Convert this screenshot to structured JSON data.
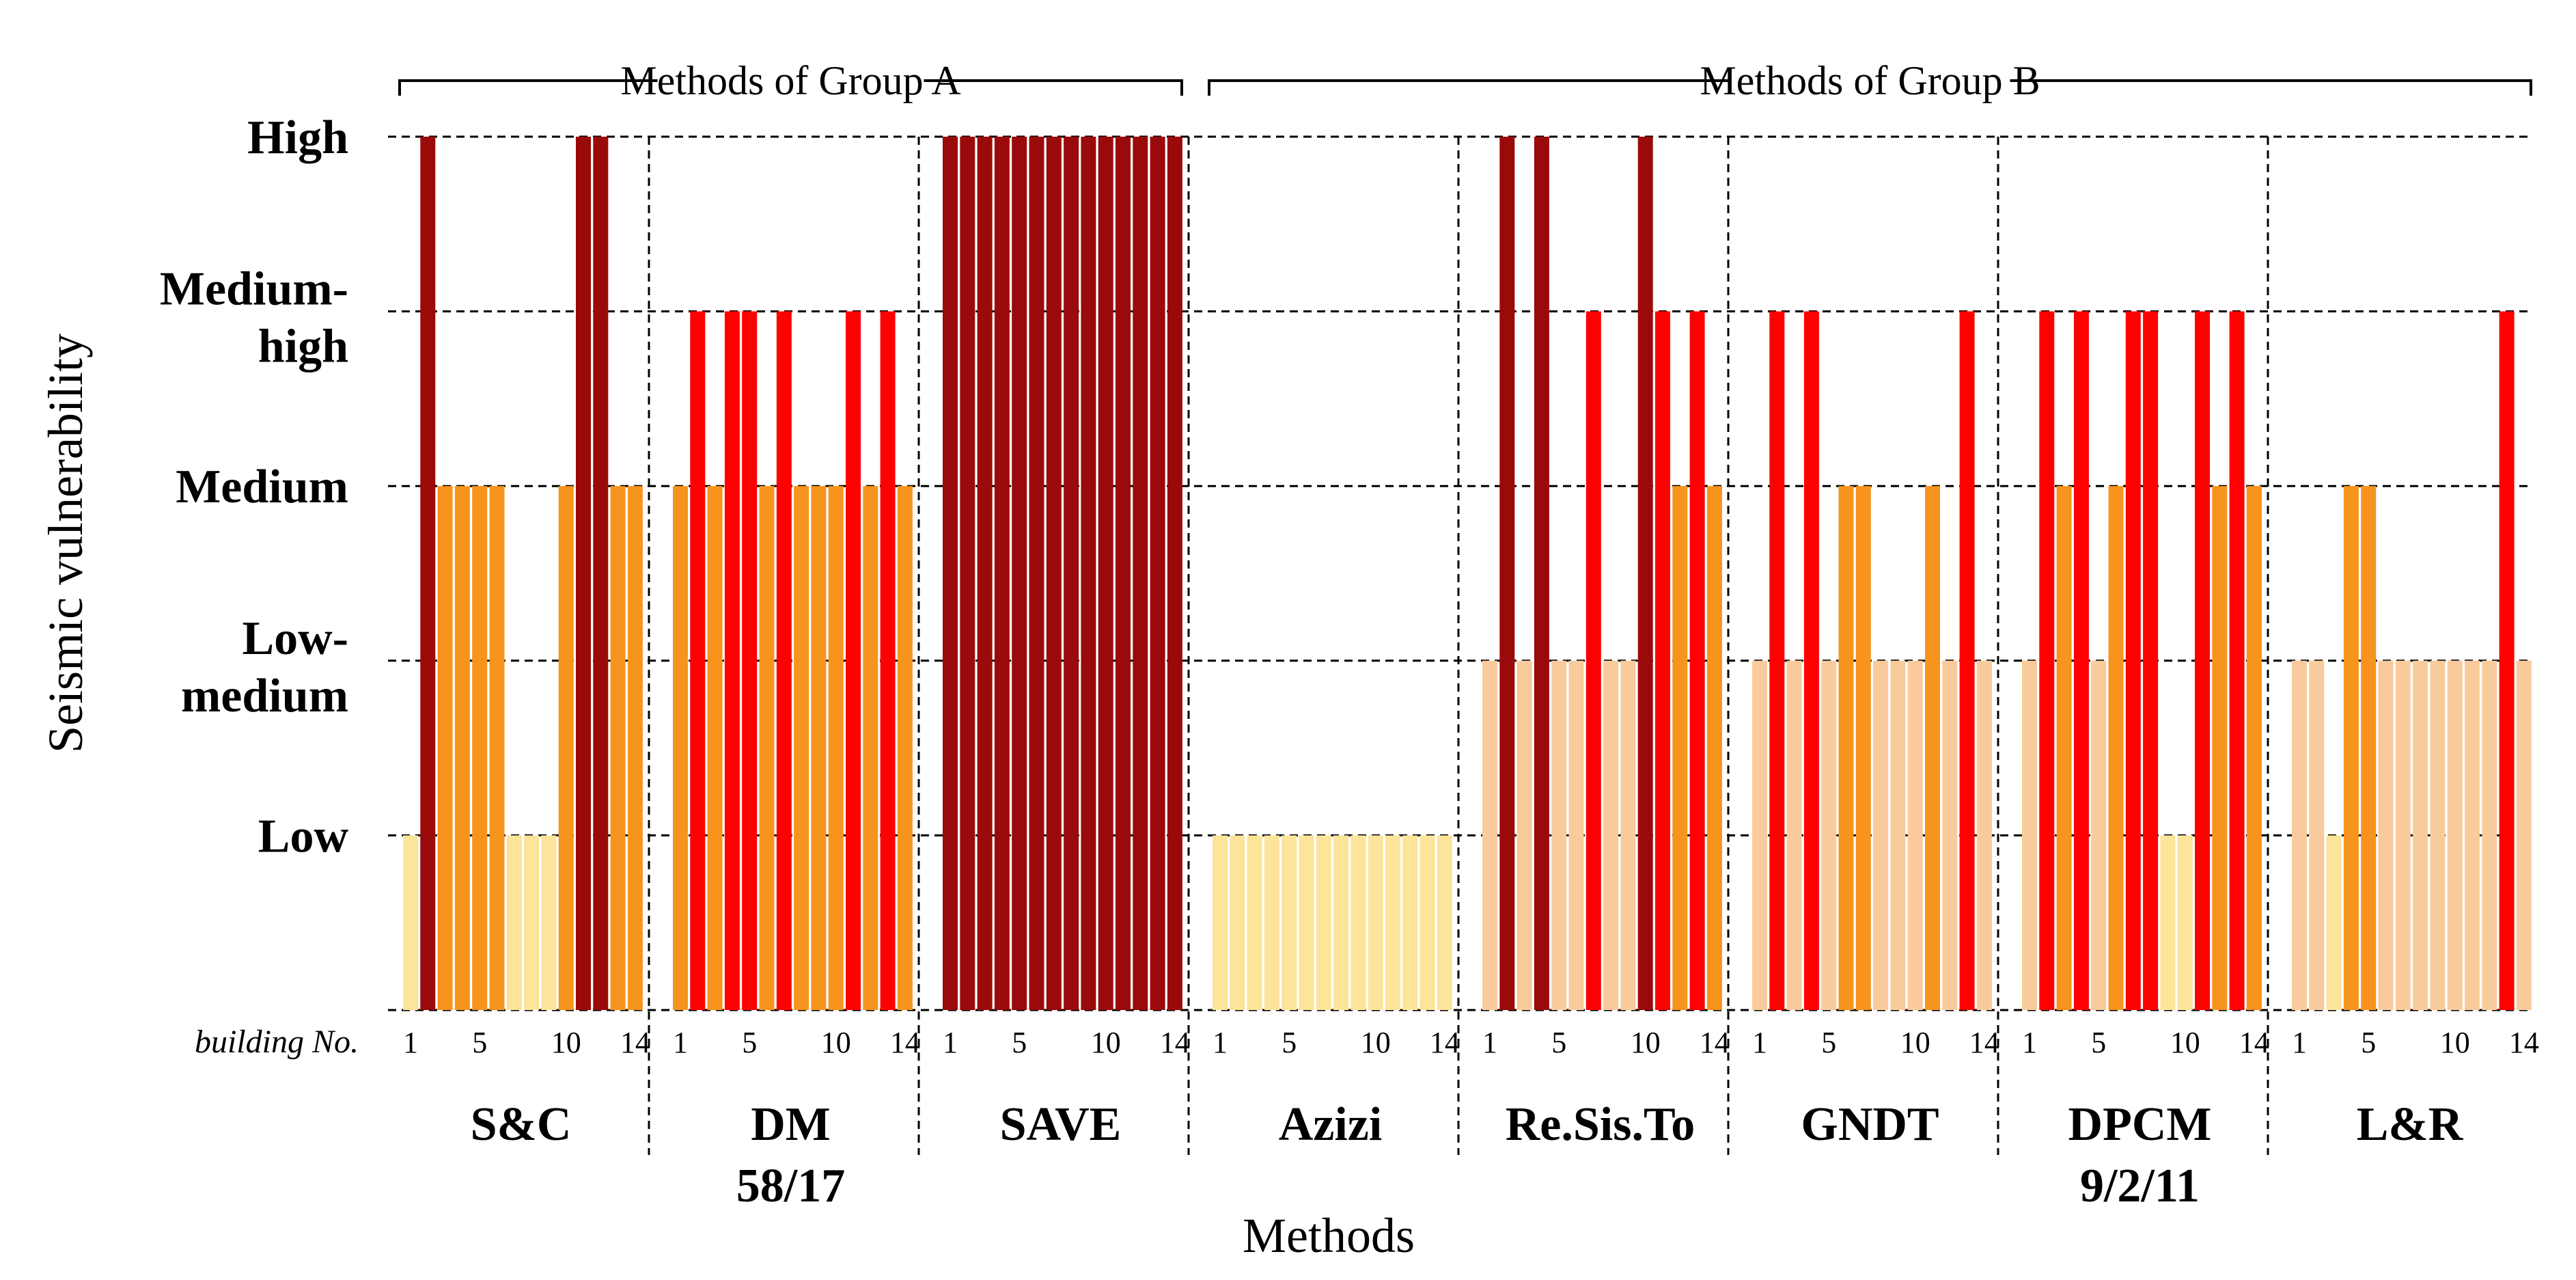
{
  "chart_data": {
    "type": "bar",
    "title": "",
    "xlabel": "Methods",
    "ylabel": "Seismic vulnerability",
    "building_label": "building No.",
    "levels": [
      "Low",
      "Low-\nmedium",
      "Medium",
      "Medium-\nhigh",
      "High"
    ],
    "ylim": [
      0,
      5
    ],
    "grid": "dashed",
    "x_ticks": [
      "1",
      "5",
      "10",
      "14"
    ],
    "x_tick_positions": [
      1,
      5,
      10,
      14
    ],
    "groups": [
      {
        "name": "Methods of Group A",
        "methods": [
          0,
          1,
          2
        ]
      },
      {
        "name": "Methods of Group B",
        "methods": [
          3,
          4,
          5,
          6,
          7
        ]
      }
    ],
    "colors": {
      "1": "#FCE49A",
      "2": "#F9CB9C",
      "3": "#F7941D",
      "4": "#FF0000",
      "5": "#9B0A0A"
    },
    "methods": [
      {
        "label": "S&C",
        "values": [
          1,
          5,
          3,
          3,
          3,
          3,
          1,
          1,
          1,
          3,
          5,
          5,
          3,
          3
        ]
      },
      {
        "label": "DM\n58/17",
        "values": [
          3,
          4,
          3,
          4,
          4,
          3,
          4,
          3,
          3,
          3,
          4,
          3,
          4,
          3
        ]
      },
      {
        "label": "SAVE",
        "values": [
          5,
          5,
          5,
          5,
          5,
          5,
          5,
          5,
          5,
          5,
          5,
          5,
          5,
          5
        ]
      },
      {
        "label": "Azizi",
        "values": [
          1,
          1,
          1,
          1,
          1,
          1,
          1,
          1,
          1,
          1,
          1,
          1,
          1,
          1
        ]
      },
      {
        "label": "Re.Sis.To",
        "values": [
          2,
          5,
          2,
          5,
          2,
          2,
          4,
          2,
          2,
          5,
          4,
          3,
          4,
          3
        ]
      },
      {
        "label": "GNDT",
        "values": [
          2,
          4,
          2,
          4,
          2,
          3,
          3,
          2,
          2,
          2,
          3,
          2,
          4,
          2
        ]
      },
      {
        "label": "DPCM\n9/2/11",
        "values": [
          2,
          4,
          3,
          4,
          2,
          3,
          4,
          4,
          1,
          1,
          4,
          3,
          4,
          3
        ]
      },
      {
        "label": "L&R",
        "values": [
          2,
          2,
          1,
          3,
          3,
          2,
          2,
          2,
          2,
          2,
          2,
          2,
          4,
          2
        ]
      }
    ]
  }
}
